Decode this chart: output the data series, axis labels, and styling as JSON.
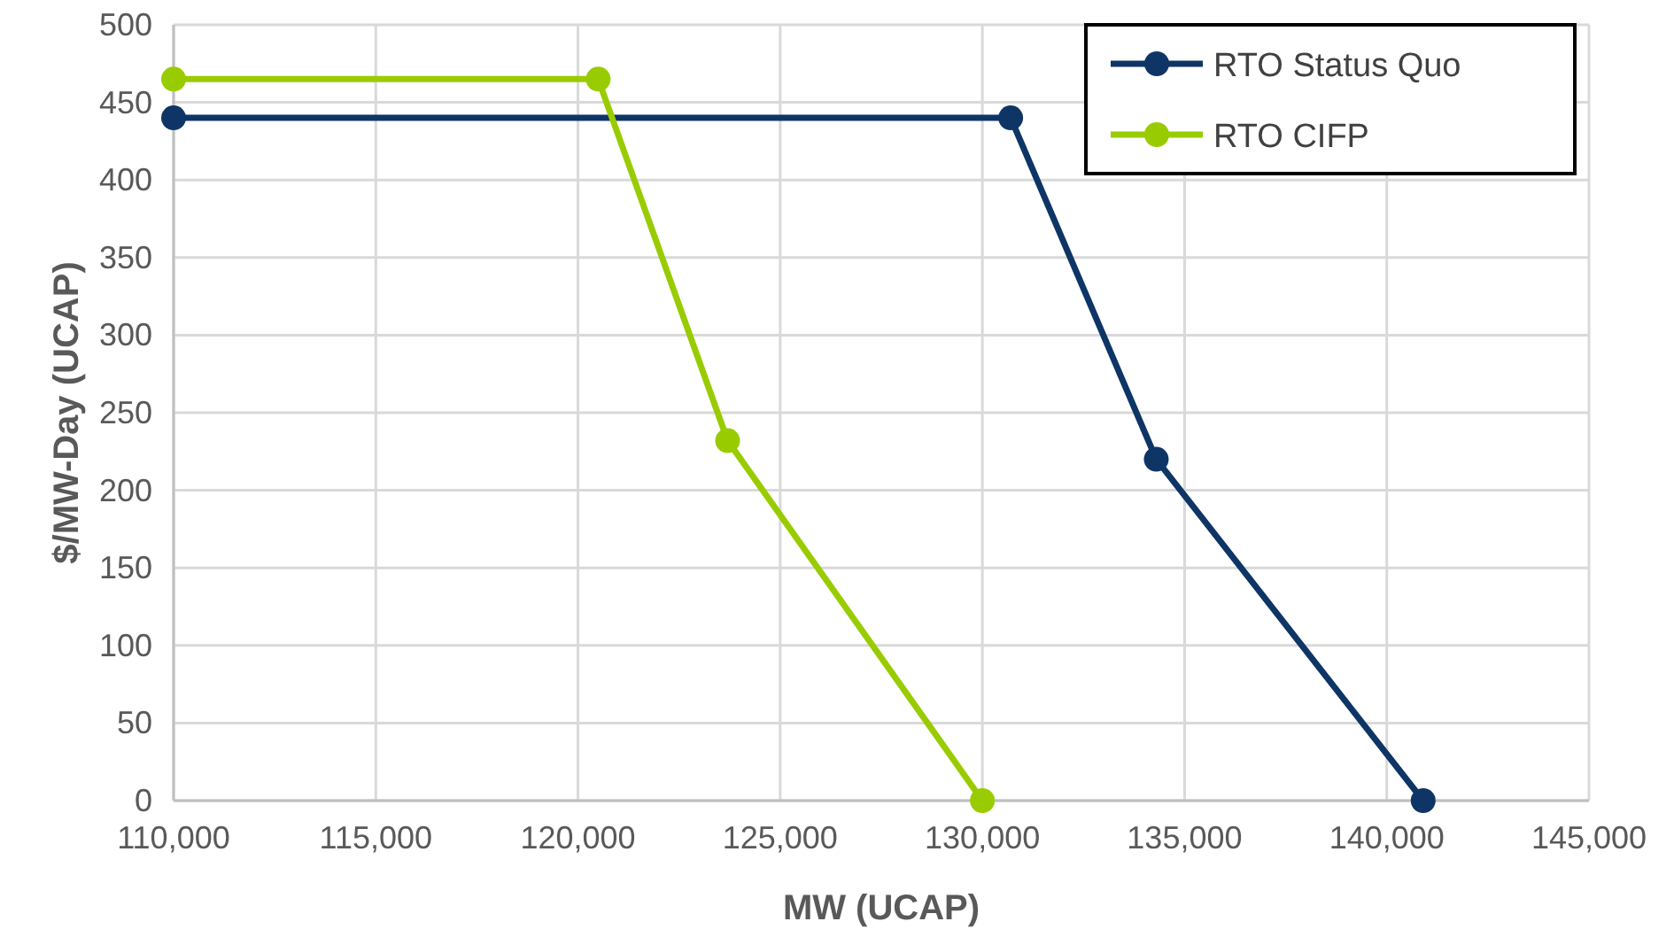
{
  "chart_data": {
    "type": "line",
    "xlabel": "MW (UCAP)",
    "ylabel": "$/MW-Day (UCAP)",
    "xlim": [
      110000,
      145000
    ],
    "xticks": [
      {
        "value": 110000,
        "label": "110,000"
      },
      {
        "value": 115000,
        "label": "115,000"
      },
      {
        "value": 120000,
        "label": "120,000"
      },
      {
        "value": 125000,
        "label": "125,000"
      },
      {
        "value": 130000,
        "label": "130,000"
      },
      {
        "value": 135000,
        "label": "135,000"
      },
      {
        "value": 140000,
        "label": "140,000"
      },
      {
        "value": 145000,
        "label": "145,000"
      }
    ],
    "ylim": [
      0,
      500
    ],
    "yticks": [
      0,
      50,
      100,
      150,
      200,
      250,
      300,
      350,
      400,
      450,
      500
    ],
    "grid": true,
    "legend": "top right",
    "marker": "circle",
    "line_style": "solid",
    "series": [
      {
        "name": "RTO Status Quo",
        "color": "#0e3566",
        "x": [
          110000,
          130700,
          134300,
          140900
        ],
        "values": [
          440,
          440,
          220,
          0
        ]
      },
      {
        "name": "RTO CIFP",
        "color": "#99cc00",
        "x": [
          110000,
          120500,
          123700,
          130000
        ],
        "values": [
          465,
          465,
          232,
          0
        ]
      }
    ]
  }
}
